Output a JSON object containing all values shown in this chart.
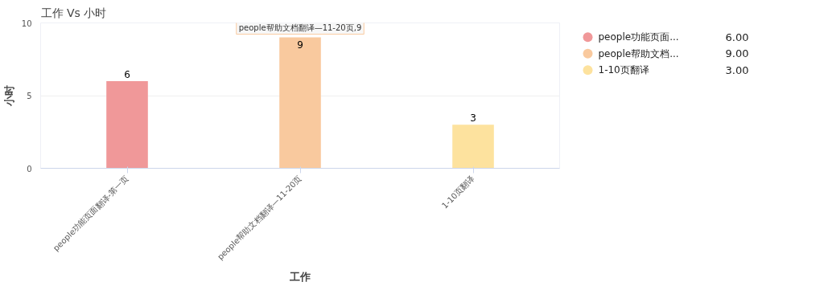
{
  "chart_data": {
    "type": "bar",
    "title": "工作 Vs 小时",
    "xlabel": "工作",
    "ylabel": "小时",
    "categories": [
      "people功能页面翻译-第一页",
      "people帮助文档翻译—11-20页",
      "1-10页翻译"
    ],
    "series": [
      {
        "name": "people功能页面...",
        "color": "#f09899",
        "values": [
          6,
          null,
          null
        ]
      },
      {
        "name": "people帮助文档...",
        "color": "#f9c99e",
        "values": [
          null,
          9,
          null
        ]
      },
      {
        "name": "1-10页翻译",
        "color": "#fde29e",
        "values": [
          null,
          null,
          3
        ]
      }
    ],
    "ylim": [
      0,
      10
    ],
    "yticks": [
      0,
      5,
      10
    ],
    "grid": "y",
    "data_labels": true,
    "legend": "right",
    "annotations": [
      {
        "text": "people帮助文档翻译—11-20页,9",
        "x": "people帮助文档翻译—11-20页",
        "y": 9
      },
      "6.00",
      "9.00",
      "3.00"
    ]
  }
}
